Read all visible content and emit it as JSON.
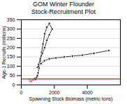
{
  "chart_data": {
    "type": "line",
    "title": "GOM Winter Flounder",
    "subtitle": "Stock-Recruitment Plot",
    "x_label": "Spawning Stock Biomass (metric tons)",
    "y_label": "Age-1 Recruits (millions)",
    "x": [
      500,
      520,
      540,
      560,
      580,
      610,
      640,
      670,
      700,
      730,
      760,
      790,
      820,
      860,
      900,
      940,
      980,
      1020,
      1080,
      1150,
      1230,
      1320,
      1420,
      1550,
      1700,
      1870,
      1700,
      1550,
      1420,
      1280,
      1150,
      1050,
      980,
      1050,
      1200,
      1400,
      1700,
      2100,
      2600,
      3100,
      3700,
      4400,
      5300
    ],
    "values": [
      28,
      25,
      22,
      18,
      20,
      24,
      22,
      26,
      28,
      30,
      28,
      32,
      35,
      30,
      38,
      42,
      50,
      65,
      90,
      130,
      175,
      220,
      275,
      310,
      330,
      300,
      270,
      240,
      200,
      170,
      140,
      110,
      95,
      100,
      115,
      130,
      140,
      145,
      150,
      155,
      160,
      170,
      185
    ],
    "color": "#000000",
    "marker": "circle",
    "reference_line": {
      "y": 32,
      "color": "#ff0000"
    },
    "xlim": [
      0,
      6000
    ],
    "xticks": [
      0,
      2000,
      4000
    ],
    "ylim": [
      0,
      350
    ],
    "yticks": [
      0,
      50,
      100,
      150,
      200,
      250,
      300,
      350
    ],
    "grid": "y"
  }
}
